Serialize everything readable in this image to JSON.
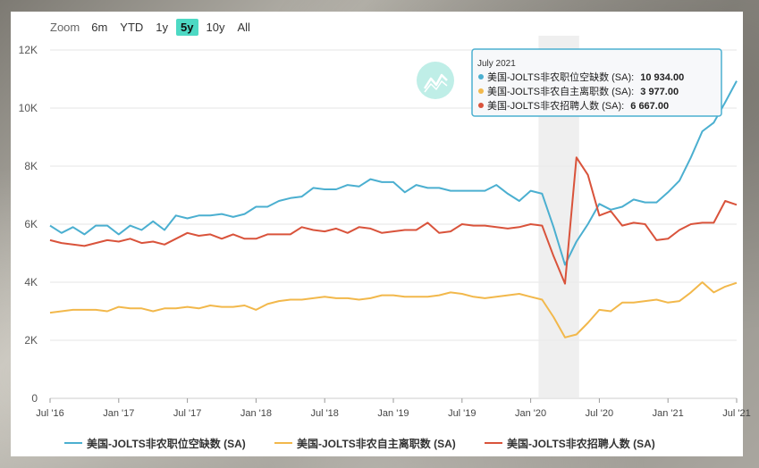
{
  "zoom": {
    "label": "Zoom",
    "buttons": [
      "6m",
      "YTD",
      "1y",
      "5y",
      "10y",
      "All"
    ],
    "active": "5y"
  },
  "tooltip": {
    "title": "July 2021",
    "rows": [
      {
        "label": "美国-JOLTS非农职位空缺数 (SA):",
        "value": "10 934.00",
        "color": "#4bafd0"
      },
      {
        "label": "美国-JOLTS非农自主离职数 (SA):",
        "value": "3 977.00",
        "color": "#f2b84b"
      },
      {
        "label": "美国-JOLTS非农招聘人数 (SA):",
        "value": "6 667.00",
        "color": "#d9533b"
      }
    ]
  },
  "chart_data": {
    "type": "line",
    "x_start": "2016-07",
    "x_end": "2021-07",
    "x_ticks": [
      "Jul '16",
      "Jan '17",
      "Jul '17",
      "Jan '18",
      "Jul '18",
      "Jan '19",
      "Jul '19",
      "Jan '20",
      "Jul '20",
      "Jan '21",
      "Jul '21"
    ],
    "y_ticks": [
      "0",
      "2K",
      "4K",
      "6K",
      "8K",
      "10K",
      "12K"
    ],
    "ylim": [
      0,
      12000
    ],
    "grid": true,
    "legend_position": "bottom",
    "shaded_band": [
      "2020-02",
      "2020-05"
    ],
    "series": [
      {
        "name": "美国-JOLTS非农职位空缺数 (SA)",
        "color": "#4bafd0",
        "values": [
          5950,
          5700,
          5900,
          5650,
          5950,
          5950,
          5650,
          5950,
          5800,
          6100,
          5800,
          6300,
          6200,
          6300,
          6300,
          6350,
          6250,
          6350,
          6600,
          6600,
          6800,
          6900,
          6950,
          7250,
          7200,
          7200,
          7350,
          7300,
          7550,
          7450,
          7450,
          7100,
          7350,
          7250,
          7250,
          7150,
          7150,
          7150,
          7150,
          7350,
          7050,
          6800,
          7150,
          7050,
          5900,
          4600,
          5400,
          6000,
          6700,
          6500,
          6600,
          6850,
          6750,
          6750,
          7100,
          7500,
          8300,
          9200,
          9500,
          10200,
          10934
        ]
      },
      {
        "name": "美国-JOLTS非农自主离职数 (SA)",
        "color": "#f2b84b",
        "values": [
          2950,
          3000,
          3050,
          3050,
          3050,
          3000,
          3150,
          3100,
          3100,
          3000,
          3100,
          3100,
          3150,
          3100,
          3200,
          3150,
          3150,
          3200,
          3050,
          3250,
          3350,
          3400,
          3400,
          3450,
          3500,
          3450,
          3450,
          3400,
          3450,
          3550,
          3550,
          3500,
          3500,
          3500,
          3550,
          3650,
          3600,
          3500,
          3450,
          3500,
          3550,
          3600,
          3500,
          3400,
          2800,
          2100,
          2200,
          2600,
          3050,
          3000,
          3300,
          3300,
          3350,
          3400,
          3300,
          3350,
          3650,
          4000,
          3650,
          3850,
          3977
        ]
      },
      {
        "name": "美国-JOLTS非农招聘人数 (SA)",
        "color": "#d9533b",
        "values": [
          5450,
          5350,
          5300,
          5250,
          5350,
          5450,
          5400,
          5500,
          5350,
          5400,
          5300,
          5500,
          5700,
          5600,
          5650,
          5500,
          5650,
          5500,
          5500,
          5650,
          5650,
          5650,
          5900,
          5800,
          5750,
          5850,
          5700,
          5900,
          5850,
          5700,
          5750,
          5800,
          5800,
          6050,
          5700,
          5750,
          6000,
          5950,
          5950,
          5900,
          5850,
          5900,
          6000,
          5950,
          4900,
          3950,
          8300,
          7700,
          6300,
          6450,
          5950,
          6050,
          6000,
          5450,
          5500,
          5800,
          6000,
          6050,
          6050,
          6800,
          6667
        ]
      }
    ]
  }
}
